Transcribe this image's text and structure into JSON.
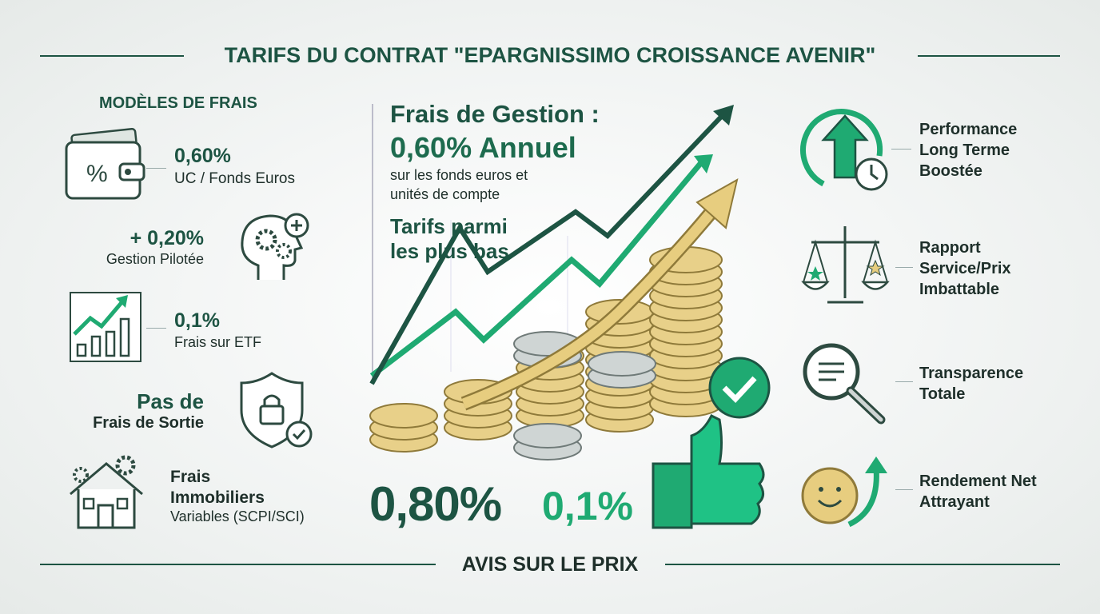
{
  "header": {
    "title": "TARIFS DU CONTRAT \"EPARGNISSIMO CROISSANCE AVENIR\""
  },
  "left": {
    "heading": "MODÈLES DE FRAIS",
    "items": [
      {
        "value": "0,60%",
        "label": "UC / Fonds Euros"
      },
      {
        "value": "+ 0,20%",
        "label": "Gestion Pilotée"
      },
      {
        "value": "0,1%",
        "label": "Frais sur ETF"
      },
      {
        "value": "Pas de",
        "label": "Frais de Sortie"
      },
      {
        "value": "Frais Immobiliers",
        "label": "Variables (SCPI/SCI)"
      }
    ]
  },
  "center": {
    "title": "Frais de Gestion :",
    "rate": "0,60% Annuel",
    "note": "sur les fonds euros et unités de compte",
    "tagline": "Tarifs parmi les plus bas",
    "big_left": "0,80%",
    "big_right": "0,1%"
  },
  "right": {
    "items": [
      "Performance Long Terme Boostée",
      "Rapport Service/Prix Imbattable",
      "Transparence Totale",
      "Rendement Net Attrayant"
    ]
  },
  "footer": {
    "title": "AVIS SUR LE PRIX"
  }
}
